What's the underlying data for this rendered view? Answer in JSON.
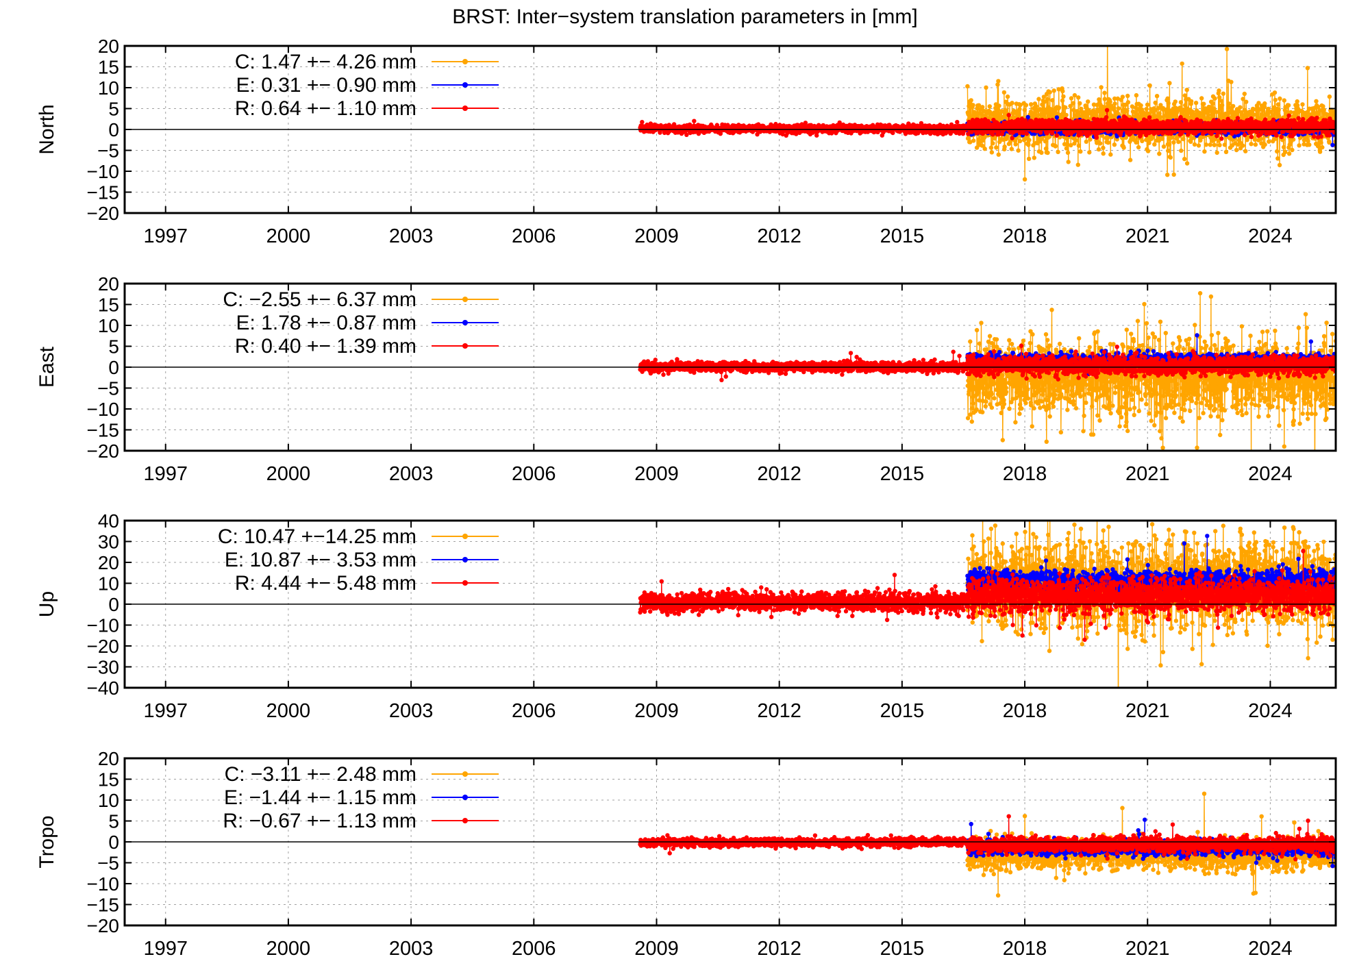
{
  "title": "BRST: Inter−system translation parameters in [mm]",
  "colors": {
    "C": "#FFA500",
    "E": "#0000FF",
    "R": "#FF0000"
  },
  "chart_data": [
    {
      "type": "scatter",
      "ylabel": "North",
      "ylim": [
        -20,
        20
      ],
      "yticks": [
        20,
        15,
        10,
        5,
        0,
        -5,
        -10,
        -15,
        -20
      ],
      "xlim": [
        1996.0,
        2025.6
      ],
      "xticks": [
        1997,
        2000,
        2003,
        2006,
        2009,
        2012,
        2015,
        2018,
        2021,
        2024
      ],
      "grid": true,
      "legend_position": "top-left",
      "series": [
        {
          "name": "C",
          "legend": "C:   1.47 +− 4.26 mm",
          "mean": 1.47,
          "std": 4.26,
          "x_range": [
            2016.6,
            2025.6
          ]
        },
        {
          "name": "E",
          "legend": "E:   0.31 +− 0.90 mm",
          "mean": 0.31,
          "std": 0.9,
          "x_range": [
            2016.6,
            2025.6
          ]
        },
        {
          "name": "R",
          "legend": "R:   0.64 +− 1.10 mm",
          "mean": 0.64,
          "std": 1.1,
          "x_range": [
            2008.6,
            2025.6
          ]
        }
      ]
    },
    {
      "type": "scatter",
      "ylabel": "East",
      "ylim": [
        -20,
        20
      ],
      "yticks": [
        20,
        15,
        10,
        5,
        0,
        -5,
        -10,
        -15,
        -20
      ],
      "xlim": [
        1996.0,
        2025.6
      ],
      "xticks": [
        1997,
        2000,
        2003,
        2006,
        2009,
        2012,
        2015,
        2018,
        2021,
        2024
      ],
      "grid": true,
      "legend_position": "top-left",
      "series": [
        {
          "name": "C",
          "legend": "C:  −2.55 +− 6.37 mm",
          "mean": -2.55,
          "std": 6.37,
          "x_range": [
            2016.6,
            2025.6
          ]
        },
        {
          "name": "E",
          "legend": "E:   1.78 +− 0.87 mm",
          "mean": 1.78,
          "std": 0.87,
          "x_range": [
            2016.6,
            2025.6
          ]
        },
        {
          "name": "R",
          "legend": "R:   0.40 +− 1.39 mm",
          "mean": 0.4,
          "std": 1.39,
          "x_range": [
            2008.6,
            2025.6
          ]
        }
      ]
    },
    {
      "type": "scatter",
      "ylabel": "Up",
      "ylim": [
        -40,
        40
      ],
      "yticks": [
        40,
        30,
        20,
        10,
        0,
        -10,
        -20,
        -30,
        -40
      ],
      "xlim": [
        1996.0,
        2025.6
      ],
      "xticks": [
        1997,
        2000,
        2003,
        2006,
        2009,
        2012,
        2015,
        2018,
        2021,
        2024
      ],
      "grid": true,
      "legend_position": "top-left",
      "series": [
        {
          "name": "C",
          "legend": "C:  10.47 +−14.25 mm",
          "mean": 10.47,
          "std": 14.25,
          "x_range": [
            2016.6,
            2025.6
          ]
        },
        {
          "name": "E",
          "legend": "E:  10.87 +− 3.53 mm",
          "mean": 10.87,
          "std": 3.53,
          "x_range": [
            2016.6,
            2025.6
          ]
        },
        {
          "name": "R",
          "legend": "R:   4.44 +− 5.48 mm",
          "mean": 4.44,
          "std": 5.48,
          "x_range": [
            2008.6,
            2025.6
          ]
        }
      ]
    },
    {
      "type": "scatter",
      "ylabel": "Tropo",
      "ylim": [
        -20,
        20
      ],
      "yticks": [
        20,
        15,
        10,
        5,
        0,
        -5,
        -10,
        -15,
        -20
      ],
      "xlim": [
        1996.0,
        2025.6
      ],
      "xticks": [
        1997,
        2000,
        2003,
        2006,
        2009,
        2012,
        2015,
        2018,
        2021,
        2024
      ],
      "grid": true,
      "legend_position": "top-left",
      "series": [
        {
          "name": "C",
          "legend": "C:  −3.11 +− 2.48 mm",
          "mean": -3.11,
          "std": 2.48,
          "x_range": [
            2016.6,
            2025.6
          ]
        },
        {
          "name": "E",
          "legend": "E:  −1.44 +− 1.15 mm",
          "mean": -1.44,
          "std": 1.15,
          "x_range": [
            2016.6,
            2025.6
          ]
        },
        {
          "name": "R",
          "legend": "R:  −0.67 +− 1.13 mm",
          "mean": -0.67,
          "std": 1.13,
          "x_range": [
            2008.6,
            2025.6
          ]
        }
      ]
    }
  ]
}
